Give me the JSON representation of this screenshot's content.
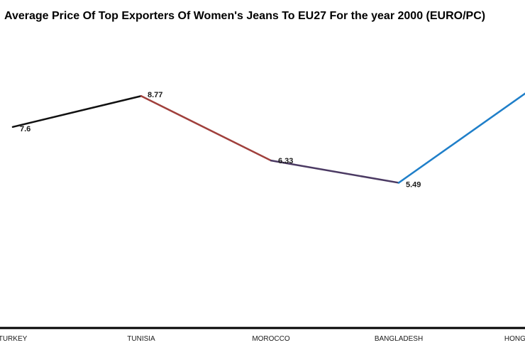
{
  "chart_data": {
    "type": "line",
    "title": "Average Price Of Top Exporters Of Women's Jeans To EU27 For the year 2000 (EURO/PC)",
    "categories": [
      "TURKEY",
      "TUNISIA",
      "MOROCCO",
      "BANGLADESH",
      "HONG KONG"
    ],
    "values": [
      7.6,
      8.77,
      6.33,
      5.49,
      8.9
    ],
    "data_labels": [
      "7.6",
      "8.77",
      "6.33",
      "5.49",
      ""
    ],
    "segment_colors": [
      "#111111",
      "#a0403c",
      "#4b3a63",
      "#1f7fc9"
    ],
    "xlabel": "",
    "ylabel": "",
    "ylim": [
      0,
      10
    ],
    "grid": false,
    "legend": "none"
  }
}
